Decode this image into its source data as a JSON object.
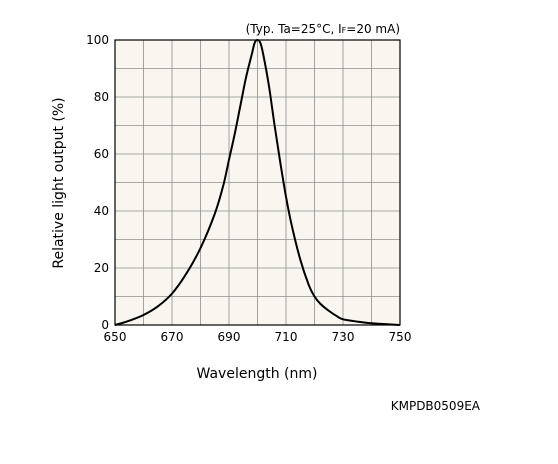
{
  "chart_data": {
    "type": "line",
    "condition_prefix": "(Typ. Ta=25°C, I",
    "condition_subscript": "F",
    "condition_suffix": "=20 mA)",
    "xlabel": "Wavelength (nm)",
    "ylabel": "Relative light output (%)",
    "xlim": [
      650,
      750
    ],
    "ylim": [
      0,
      100
    ],
    "x_ticks": [
      "650",
      "670",
      "690",
      "710",
      "730",
      "750"
    ],
    "y_ticks": [
      "0",
      "20",
      "40",
      "60",
      "80",
      "100"
    ],
    "x_tick_values": [
      650,
      670,
      690,
      710,
      730,
      750
    ],
    "y_tick_values": [
      0,
      20,
      40,
      60,
      80,
      100
    ],
    "grid": true,
    "plot_background": "#f8f6ef",
    "grid_color": "#8f8f8f",
    "line_color": "#000000",
    "series": [
      {
        "x": [
          650,
          655,
          660,
          665,
          670,
          675,
          680,
          685,
          688,
          690,
          692,
          694,
          696,
          698,
          699,
          700,
          701,
          702,
          704,
          706,
          708,
          710,
          712,
          715,
          718,
          720,
          722,
          725,
          728,
          730,
          735,
          740,
          745,
          750
        ],
        "y": [
          0,
          1.5,
          3.5,
          6.5,
          11,
          18,
          27,
          39,
          49,
          58,
          67,
          77,
          87,
          95,
          99,
          100,
          99,
          95,
          84,
          70,
          57,
          45,
          35,
          23,
          14,
          10,
          7.5,
          5,
          3,
          2,
          1.2,
          0.6,
          0.3,
          0
        ]
      }
    ],
    "doc_code": "KMPDB0509EA"
  }
}
